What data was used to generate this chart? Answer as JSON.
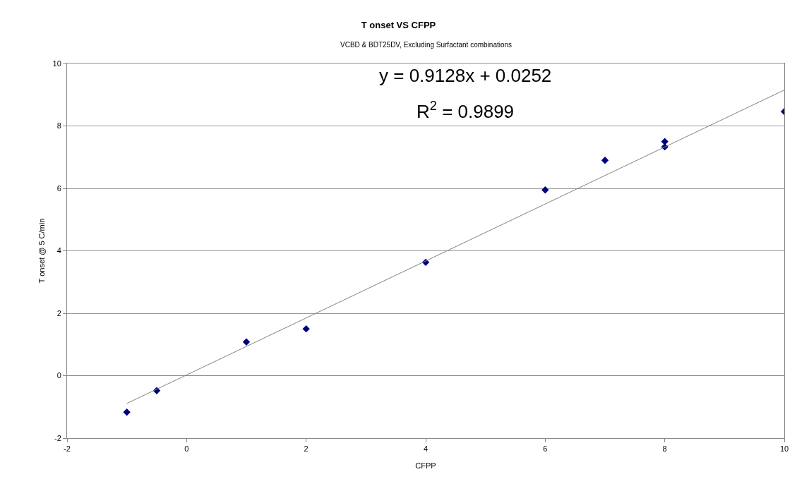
{
  "chart_data": {
    "type": "scatter",
    "title": "T onset VS CFPP",
    "subtitle": "VCBD & BDT25DV, Excluding Surfactant combinations",
    "xlabel": "CFPP",
    "ylabel": "T onset @ 5 C/min",
    "series": [
      {
        "color": "#00007f",
        "marker": "diamond",
        "x": [
          -1,
          -0.5,
          1,
          2,
          4,
          6,
          7,
          8,
          8,
          10
        ],
        "values": [
          -1.17,
          -0.48,
          1.08,
          1.5,
          3.63,
          5.95,
          6.9,
          7.5,
          7.33,
          8.46
        ]
      },
      {
        "type": "line",
        "color": "#808080",
        "marker": "none",
        "line_style": "solid",
        "x": [
          -1,
          10
        ],
        "values": [
          -0.89,
          9.15
        ]
      }
    ],
    "xlim": [
      -2,
      10
    ],
    "xticks": [
      -2,
      0,
      2,
      4,
      6,
      8,
      10
    ],
    "ylim": [
      -2,
      10
    ],
    "yticks": [
      -2,
      0,
      2,
      4,
      6,
      8,
      10
    ],
    "grid": "y",
    "legend": false,
    "annotations": [
      "y = 0.9128x + 0.0252",
      "R$^{2}$ = 0.9899"
    ]
  }
}
